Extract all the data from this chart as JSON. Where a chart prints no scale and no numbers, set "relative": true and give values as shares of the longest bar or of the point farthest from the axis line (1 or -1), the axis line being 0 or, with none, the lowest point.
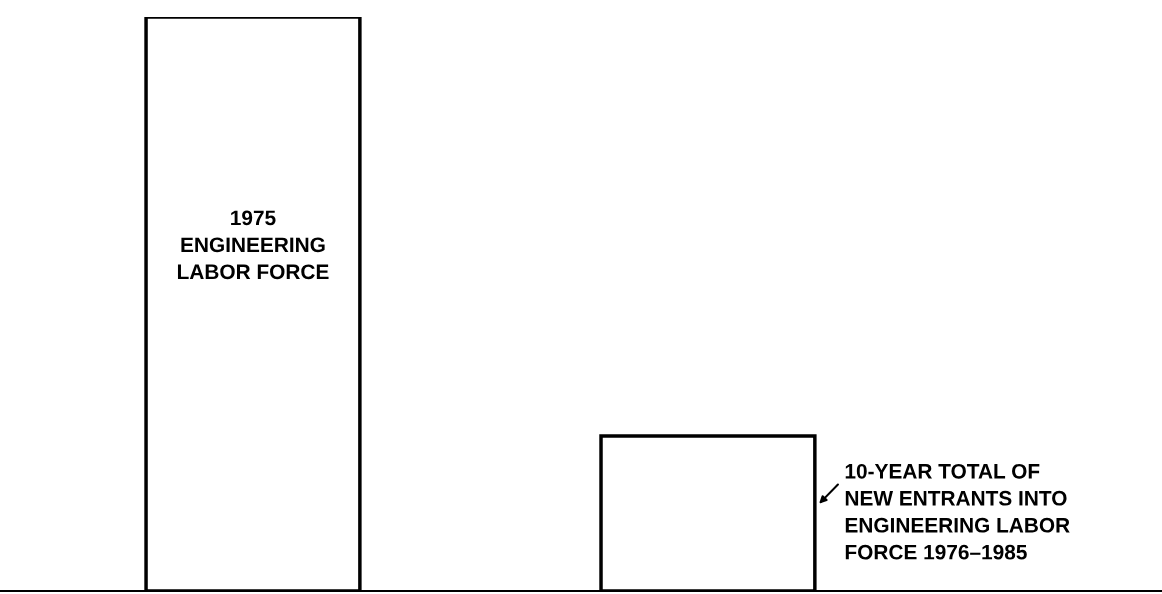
{
  "chart_data": {
    "type": "bar",
    "relative": true,
    "categories": [
      null,
      null
    ],
    "values": [
      1,
      0.27
    ],
    "color": "#ffffff",
    "annotations": [
      "1975\nENGINEERING\nLABOR FORCE",
      "10-YEAR TOTAL OF\nNEW ENTRANTS INTO\nENGINEERING LABOR\nFORCE 1976–1985"
    ],
    "grid": false,
    "legend": false
  }
}
